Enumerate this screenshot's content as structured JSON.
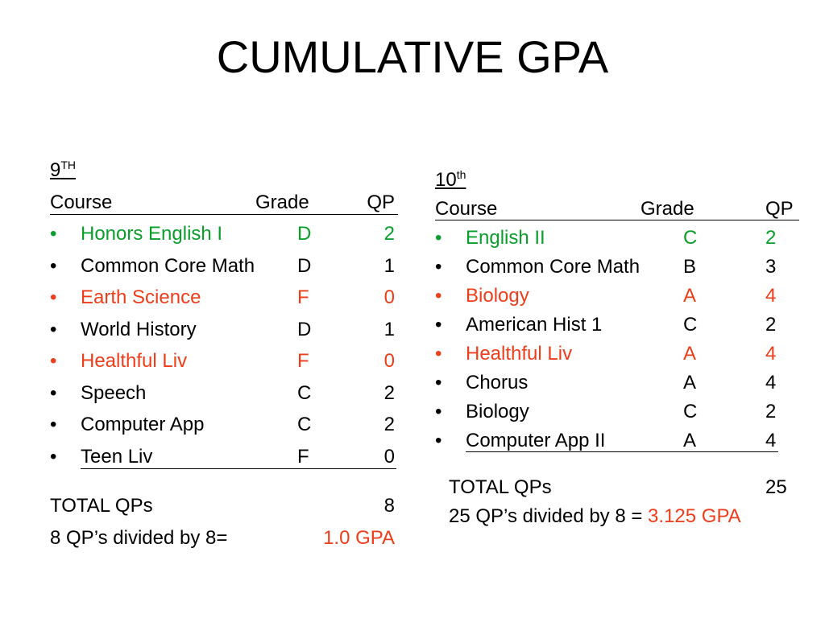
{
  "title": "CUMULATIVE GPA",
  "colors": {
    "passed_accent": "#0a9e2a",
    "failed_accent": "#ee3d1a"
  },
  "year9": {
    "grade_number": "9",
    "grade_suffix": "TH",
    "headers": {
      "course": "Course",
      "grade": "Grade",
      "qp": "QP"
    },
    "rows": [
      {
        "course": "Honors English I",
        "grade": "D",
        "qp": "2",
        "color": "green"
      },
      {
        "course": "Common Core Math",
        "grade": "D",
        "qp": "1",
        "color": "black"
      },
      {
        "course": "Earth Science",
        "grade": "F",
        "qp": "0",
        "color": "red"
      },
      {
        "course": "World History",
        "grade": "D",
        "qp": "1",
        "color": "black"
      },
      {
        "course": "Healthful Liv",
        "grade": "F",
        "qp": "0",
        "color": "red"
      },
      {
        "course": "Speech",
        "grade": "C",
        "qp": "2",
        "color": "black"
      },
      {
        "course": "Computer App",
        "grade": "C",
        "qp": "2",
        "color": "black"
      },
      {
        "course": "Teen Liv",
        "grade": "F",
        "qp": "0",
        "color": "black"
      }
    ],
    "total_label": "TOTAL QPs",
    "total_value": "8",
    "calc_label": "8 QP’s divided by 8=",
    "gpa": "1.0 GPA"
  },
  "year10": {
    "grade_number": "10",
    "grade_suffix": "th",
    "headers": {
      "course": "Course",
      "grade": "Grade",
      "qp": "QP"
    },
    "rows": [
      {
        "course": "English II",
        "grade": "C",
        "qp": "2",
        "color": "green"
      },
      {
        "course": "Common Core Math",
        "grade": "B",
        "qp": "3",
        "color": "black"
      },
      {
        "course": "Biology",
        "grade": "A",
        "qp": "4",
        "color": "red"
      },
      {
        "course": "American Hist 1",
        "grade": "C",
        "qp": "2",
        "color": "black"
      },
      {
        "course": "Healthful Liv",
        "grade": "A",
        "qp": "4",
        "color": "red"
      },
      {
        "course": "Chorus",
        "grade": "A",
        "qp": "4",
        "color": "black"
      },
      {
        "course": "Biology",
        "grade": "C",
        "qp": "2",
        "color": "black"
      },
      {
        "course": "Computer App II",
        "grade": "A",
        "qp": "4",
        "color": "black"
      }
    ],
    "total_label": "TOTAL QPs",
    "total_value": "25",
    "calc_label": "25 QP’s divided by 8 =",
    "gpa": "3.125 GPA"
  }
}
